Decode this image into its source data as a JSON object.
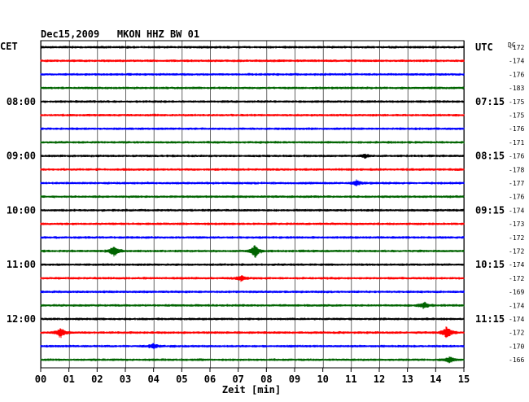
{
  "chart_data": {
    "type": "line",
    "title": "Dec15,2009   MKON HHZ BW 01",
    "left_label": "CET",
    "right_label": "UTC",
    "dc_label": "DC",
    "xlabel": "Zeit [min]",
    "xlim": [
      0,
      15
    ],
    "x_ticks": [
      "00",
      "01",
      "02",
      "03",
      "04",
      "05",
      "06",
      "07",
      "08",
      "09",
      "10",
      "11",
      "12",
      "13",
      "14",
      "15"
    ],
    "row_colors": [
      "#000000",
      "#ff0000",
      "#0000ff",
      "#006400"
    ],
    "left_time_labels": [
      {
        "row": 4,
        "text": "08:00"
      },
      {
        "row": 8,
        "text": "09:00"
      },
      {
        "row": 12,
        "text": "10:00"
      },
      {
        "row": 16,
        "text": "11:00"
      },
      {
        "row": 20,
        "text": "12:00"
      }
    ],
    "right_time_labels": [
      {
        "row": 0,
        "text": "UTC"
      },
      {
        "row": 4,
        "text": "07:15"
      },
      {
        "row": 8,
        "text": "08:15"
      },
      {
        "row": 12,
        "text": "09:15"
      },
      {
        "row": 16,
        "text": "10:15"
      },
      {
        "row": 20,
        "text": "11:15"
      }
    ],
    "dc_values": [
      "-172",
      "-174",
      "-176",
      "-183",
      "-175",
      "-175",
      "-176",
      "-171",
      "-176",
      "-178",
      "-177",
      "-176",
      "-174",
      "-173",
      "-172",
      "-172",
      "-174",
      "-172",
      "-169",
      "-174",
      "-174",
      "-172",
      "-170",
      "-166"
    ],
    "events": [
      {
        "row": 15,
        "minute": 2.6,
        "amplitude": 7
      },
      {
        "row": 15,
        "minute": 7.6,
        "amplitude": 8
      },
      {
        "row": 17,
        "minute": 7.1,
        "amplitude": 3
      },
      {
        "row": 19,
        "minute": 13.6,
        "amplitude": 4
      },
      {
        "row": 21,
        "minute": 0.7,
        "amplitude": 6
      },
      {
        "row": 21,
        "minute": 14.4,
        "amplitude": 8
      },
      {
        "row": 22,
        "minute": 4.0,
        "amplitude": 3
      },
      {
        "row": 23,
        "minute": 14.5,
        "amplitude": 4
      },
      {
        "row": 10,
        "minute": 11.2,
        "amplitude": 3
      },
      {
        "row": 8,
        "minute": 11.5,
        "amplitude": 2
      }
    ]
  }
}
